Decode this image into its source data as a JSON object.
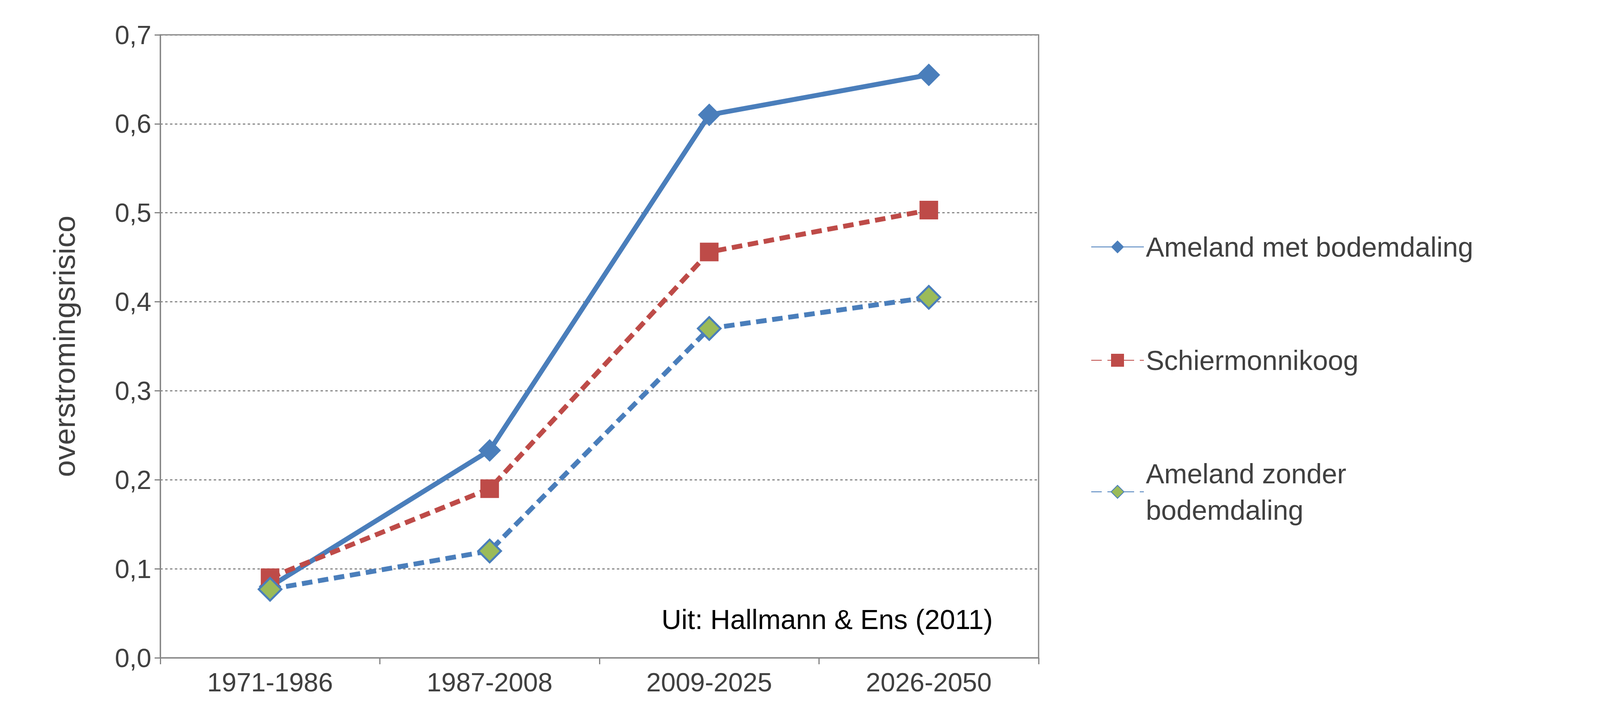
{
  "chart_data": {
    "type": "line",
    "y_label": "overstromingsrisico",
    "annotation": "Uit: Hallmann & Ens (2011)",
    "categories": [
      "1971-1986",
      "1987-2008",
      "2009-2025",
      "2026-2050"
    ],
    "series": [
      {
        "name": "Ameland met bodemdaling",
        "color": "#4a7ebb",
        "marker": "diamond",
        "line_style": "solid",
        "values": [
          0.08,
          0.233,
          0.61,
          0.655
        ]
      },
      {
        "name": "Schiermonnikoog",
        "color": "#be4b48",
        "marker": "square",
        "line_style": "dashed",
        "values": [
          0.09,
          0.19,
          0.456,
          0.503
        ]
      },
      {
        "name": "Ameland zonder bodemdaling",
        "color": "#4a7ebb",
        "marker": "diamond",
        "line_style": "dashed",
        "values": [
          0.077,
          0.12,
          0.37,
          0.405
        ]
      }
    ],
    "ylim": [
      0,
      0.7
    ],
    "yticks": [
      {
        "value": 0,
        "label": "0,0"
      },
      {
        "value": 0.1,
        "label": "0,1"
      },
      {
        "value": 0.2,
        "label": "0,2"
      },
      {
        "value": 0.3,
        "label": "0,3"
      },
      {
        "value": 0.4,
        "label": "0,4"
      },
      {
        "value": 0.5,
        "label": "0,5"
      },
      {
        "value": 0.6,
        "label": "0,6"
      },
      {
        "value": 0.7,
        "label": "0,7"
      }
    ],
    "grid": true,
    "legend": "right"
  }
}
